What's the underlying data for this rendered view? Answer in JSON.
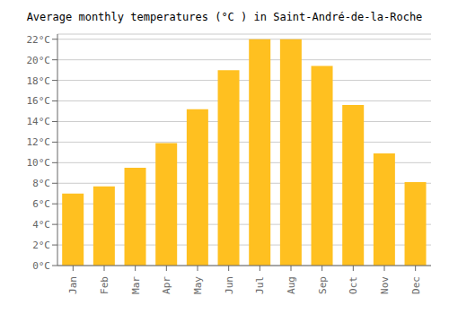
{
  "chart_data": {
    "type": "bar",
    "title": "Average monthly temperatures (°C ) in Saint-André-de-la-Roche",
    "categories": [
      "Jan",
      "Feb",
      "Mar",
      "Apr",
      "May",
      "Jun",
      "Jul",
      "Aug",
      "Sep",
      "Oct",
      "Nov",
      "Dec"
    ],
    "values": [
      7.0,
      7.7,
      9.5,
      11.9,
      15.2,
      19.0,
      22.0,
      22.0,
      19.4,
      15.6,
      10.9,
      8.1
    ],
    "color": "#FFC020",
    "ylim": [
      0,
      22.5
    ],
    "yticks": [
      {
        "value": 0,
        "label": "0°C"
      },
      {
        "value": 2,
        "label": "2°C"
      },
      {
        "value": 4,
        "label": "4°C"
      },
      {
        "value": 6,
        "label": "6°C"
      },
      {
        "value": 8,
        "label": "8°C"
      },
      {
        "value": 10,
        "label": "10°C"
      },
      {
        "value": 12,
        "label": "12°C"
      },
      {
        "value": 14,
        "label": "14°C"
      },
      {
        "value": 16,
        "label": "16°C"
      },
      {
        "value": 18,
        "label": "18°C"
      },
      {
        "value": 20,
        "label": "20°C"
      },
      {
        "value": 22,
        "label": "22°C"
      }
    ],
    "grid": true
  }
}
